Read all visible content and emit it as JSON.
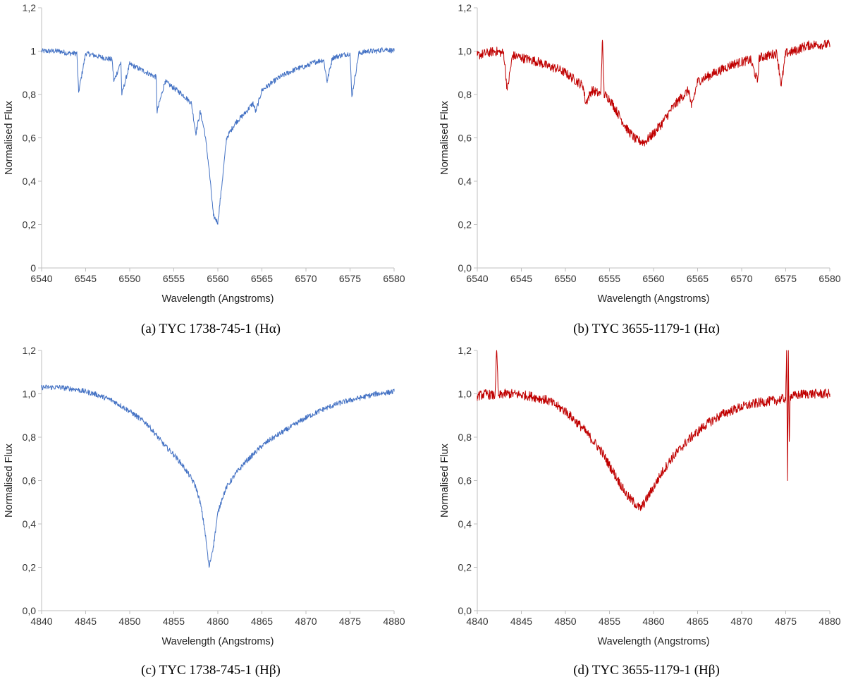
{
  "chart_data": [
    {
      "type": "line",
      "caption": "(a) TYC 1738-745-1 (Hα)",
      "color": "#4472C4",
      "xlabel": "Wavelength (Angstroms)",
      "ylabel": "Normalised Flux",
      "xlim": [
        6540,
        6580
      ],
      "ylim": [
        0,
        1.2
      ],
      "xticks": [
        "6540",
        "6545",
        "6550",
        "6555",
        "6560",
        "6565",
        "6570",
        "6575",
        "6580"
      ],
      "yticks": [
        "0",
        "0,2",
        "0,4",
        "0,6",
        "0,8",
        "1",
        "1,2"
      ],
      "grid": false,
      "series": [
        {
          "x": [
            6540,
            6541,
            6542,
            6543,
            6544,
            6544.2,
            6545,
            6546,
            6547,
            6548,
            6548.2,
            6549,
            6549.1,
            6550,
            6551,
            6552,
            6553,
            6553.1,
            6554,
            6555,
            6556,
            6557,
            6557.5,
            6558,
            6558.5,
            6559,
            6559.5,
            6560,
            6560.5,
            6561,
            6562,
            6563,
            6564,
            6564.3,
            6565,
            6566,
            6567,
            6568,
            6569,
            6570,
            6571,
            6572,
            6572.4,
            6573,
            6574,
            6575,
            6575.2,
            6576,
            6577,
            6578,
            6579,
            6580
          ],
          "y": [
            1.0,
            1.0,
            1.0,
            0.99,
            0.99,
            0.81,
            0.99,
            0.98,
            0.97,
            0.96,
            0.86,
            0.95,
            0.8,
            0.94,
            0.92,
            0.9,
            0.88,
            0.72,
            0.86,
            0.83,
            0.8,
            0.76,
            0.62,
            0.72,
            0.63,
            0.46,
            0.24,
            0.21,
            0.4,
            0.6,
            0.67,
            0.71,
            0.76,
            0.72,
            0.82,
            0.85,
            0.88,
            0.9,
            0.92,
            0.93,
            0.95,
            0.96,
            0.86,
            0.97,
            0.98,
            0.99,
            0.79,
            0.99,
            1.0,
            1.0,
            1.01,
            1.0
          ]
        }
      ]
    },
    {
      "type": "line",
      "caption": "(b) TYC 3655-1179-1 (Hα)",
      "color": "#C00000",
      "xlabel": "Wavelength (Angstroms)",
      "ylabel": "Normalised Flux",
      "xlim": [
        6540,
        6580
      ],
      "ylim": [
        0,
        1.2
      ],
      "xticks": [
        "6540",
        "6545",
        "6550",
        "6555",
        "6560",
        "6565",
        "6570",
        "6575",
        "6580"
      ],
      "yticks": [
        "0,0",
        "0,2",
        "0,4",
        "0,6",
        "0,8",
        "1,0",
        "1,2"
      ],
      "grid": false,
      "series": [
        {
          "x": [
            6540,
            6541,
            6542,
            6543,
            6543.4,
            6544,
            6545,
            6546,
            6547,
            6548,
            6549,
            6550,
            6551,
            6552,
            6552.3,
            6553,
            6554,
            6554.2,
            6554.4,
            6555,
            6556,
            6557,
            6558,
            6559,
            6560,
            6561,
            6562,
            6563,
            6564,
            6564.3,
            6565,
            6566,
            6567,
            6568,
            6569,
            6570,
            6571,
            6571.8,
            6572,
            6573,
            6574,
            6574.5,
            6575,
            6576,
            6577,
            6578,
            6579,
            6580
          ],
          "y": [
            0.98,
            0.99,
            1.0,
            0.99,
            0.82,
            0.98,
            0.97,
            0.96,
            0.95,
            0.93,
            0.92,
            0.9,
            0.87,
            0.84,
            0.76,
            0.82,
            0.8,
            1.05,
            0.8,
            0.78,
            0.71,
            0.64,
            0.59,
            0.58,
            0.62,
            0.67,
            0.73,
            0.78,
            0.82,
            0.74,
            0.86,
            0.88,
            0.9,
            0.92,
            0.94,
            0.95,
            0.96,
            0.86,
            0.97,
            0.98,
            0.99,
            0.84,
            0.99,
            1.0,
            1.02,
            1.03,
            1.03,
            1.03
          ]
        }
      ]
    },
    {
      "type": "line",
      "caption": "(c) TYC 1738-745-1 (Hβ)",
      "color": "#4472C4",
      "xlabel": "Wavelength (Angstroms)",
      "ylabel": "Normalised Flux",
      "xlim": [
        4840,
        4880
      ],
      "ylim": [
        0,
        1.2
      ],
      "xticks": [
        "4840",
        "4845",
        "4850",
        "4855",
        "4860",
        "4865",
        "4870",
        "4875",
        "4880"
      ],
      "yticks": [
        "0,0",
        "0,2",
        "0,4",
        "0,6",
        "0,8",
        "1,0",
        "1,2"
      ],
      "grid": false,
      "series": [
        {
          "x": [
            4840,
            4842,
            4844,
            4846,
            4848,
            4850,
            4852,
            4853,
            4854,
            4855,
            4856,
            4857,
            4857.5,
            4858,
            4858.5,
            4859,
            4859.5,
            4860,
            4860.5,
            4861,
            4862,
            4863,
            4864,
            4865,
            4866,
            4868,
            4870,
            4872,
            4874,
            4876,
            4878,
            4880
          ],
          "y": [
            1.03,
            1.03,
            1.02,
            1.0,
            0.97,
            0.92,
            0.86,
            0.81,
            0.76,
            0.72,
            0.67,
            0.61,
            0.57,
            0.5,
            0.38,
            0.2,
            0.3,
            0.45,
            0.52,
            0.57,
            0.63,
            0.68,
            0.72,
            0.76,
            0.79,
            0.84,
            0.89,
            0.93,
            0.96,
            0.98,
            1.0,
            1.01
          ]
        }
      ]
    },
    {
      "type": "line",
      "caption": "(d) TYC 3655-1179-1 (Hβ)",
      "color": "#C00000",
      "xlabel": "Wavelength (Angstroms)",
      "ylabel": "Normalised Flux",
      "xlim": [
        4840,
        4880
      ],
      "ylim": [
        0,
        1.2
      ],
      "xticks": [
        "4840",
        "4845",
        "4850",
        "4855",
        "4860",
        "4865",
        "4870",
        "4875",
        "4880"
      ],
      "yticks": [
        "0,0",
        "0,2",
        "0,4",
        "0,6",
        "0,8",
        "1,0",
        "1,2"
      ],
      "grid": false,
      "series": [
        {
          "x": [
            4840,
            4841,
            4842,
            4842.2,
            4842.4,
            4843,
            4844,
            4846,
            4848,
            4850,
            4852,
            4854,
            4855,
            4856,
            4857,
            4858,
            4858.5,
            4859,
            4860,
            4861,
            4862,
            4864,
            4866,
            4868,
            4870,
            4872,
            4874,
            4875,
            4875.1,
            4875.2,
            4875.3,
            4875.4,
            4875.5,
            4876,
            4877,
            4878,
            4880
          ],
          "y": [
            0.99,
            1.0,
            0.99,
            1.2,
            0.99,
            1.0,
            1.0,
            0.99,
            0.97,
            0.92,
            0.84,
            0.74,
            0.67,
            0.6,
            0.53,
            0.49,
            0.47,
            0.5,
            0.57,
            0.64,
            0.7,
            0.79,
            0.86,
            0.91,
            0.94,
            0.96,
            0.97,
            0.98,
            1.2,
            0.6,
            1.2,
            0.78,
            0.99,
            0.99,
            1.0,
            1.0,
            1.0
          ]
        }
      ]
    }
  ]
}
